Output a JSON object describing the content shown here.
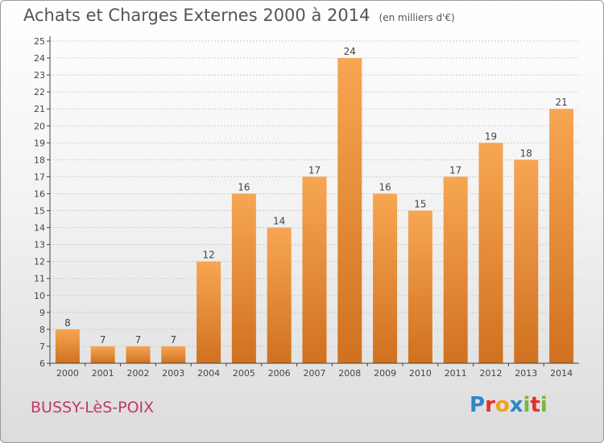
{
  "title": "Achats et Charges Externes 2000 à 2014",
  "subtitle": "(en milliers d'€)",
  "place_name": "BUSSY-LèS-POIX",
  "logo": {
    "letters": [
      "P",
      "r",
      "o",
      "x",
      "i",
      "t",
      "i"
    ],
    "colors": [
      "#2e86c8",
      "#e0312f",
      "#f0a21b",
      "#2e86c8",
      "#7ab640",
      "#e0312f",
      "#7ab640"
    ]
  },
  "colors": {
    "bar_top": "#f7a653",
    "bar_bottom": "#d0711f",
    "axis": "#444444",
    "grid": "#cccccc"
  },
  "chart_data": {
    "type": "bar",
    "title": "Achats et Charges Externes 2000 à 2014",
    "subtitle": "(en milliers d'€)",
    "xlabel": "",
    "ylabel": "",
    "categories": [
      "2000",
      "2001",
      "2002",
      "2003",
      "2004",
      "2005",
      "2006",
      "2007",
      "2008",
      "2009",
      "2010",
      "2011",
      "2012",
      "2013",
      "2014"
    ],
    "values": [
      8,
      7,
      7,
      7,
      12,
      16,
      14,
      17,
      24,
      16,
      15,
      17,
      19,
      18,
      21
    ],
    "ylim": [
      6,
      25
    ],
    "yticks": [
      6,
      7,
      8,
      9,
      10,
      11,
      12,
      13,
      14,
      15,
      16,
      17,
      18,
      19,
      20,
      21,
      22,
      23,
      24,
      25
    ],
    "grid": true
  }
}
